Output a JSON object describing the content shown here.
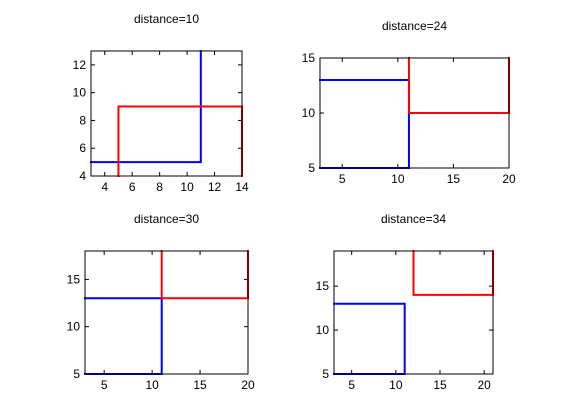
{
  "chart_data": [
    {
      "type": "line",
      "title": "distance=10",
      "xlim": [
        3,
        14
      ],
      "ylim": [
        4,
        13
      ],
      "xticks": [
        4,
        6,
        8,
        10,
        12,
        14
      ],
      "yticks": [
        4,
        6,
        8,
        10,
        12
      ],
      "grid": false,
      "series": [
        {
          "color": "#0000ff",
          "x": [
            3,
            11,
            11,
            11
          ],
          "y": [
            5,
            5,
            5,
            13
          ]
        },
        {
          "color": "#ff0000",
          "x": [
            5,
            5,
            5,
            14,
            14,
            14,
            14
          ],
          "y": [
            4,
            9,
            9,
            9,
            9,
            4,
            4
          ]
        }
      ]
    },
    {
      "type": "line",
      "title": "distance=24",
      "xlim": [
        3,
        20
      ],
      "ylim": [
        5,
        15
      ],
      "xticks": [
        5,
        10,
        15,
        20
      ],
      "yticks": [
        5,
        10,
        15
      ],
      "grid": false,
      "series": [
        {
          "color": "#0000ff",
          "x": [
            3,
            11,
            11,
            11,
            11,
            3
          ],
          "y": [
            5,
            5,
            5,
            13,
            13,
            13
          ]
        },
        {
          "color": "#ff0000",
          "x": [
            11,
            11,
            11,
            20,
            20,
            20
          ],
          "y": [
            15,
            10,
            10,
            10,
            10,
            15
          ]
        }
      ]
    },
    {
      "type": "line",
      "title": "distance=30",
      "xlim": [
        3,
        20
      ],
      "ylim": [
        5,
        18
      ],
      "xticks": [
        5,
        10,
        15,
        20
      ],
      "yticks": [
        5,
        10,
        15
      ],
      "grid": false,
      "series": [
        {
          "color": "#0000ff",
          "x": [
            3,
            11,
            11,
            11,
            11,
            3
          ],
          "y": [
            5,
            5,
            5,
            13,
            13,
            13
          ]
        },
        {
          "color": "#ff0000",
          "x": [
            11,
            11,
            11,
            20,
            20,
            20
          ],
          "y": [
            18,
            13,
            13,
            13,
            13,
            18
          ]
        }
      ]
    },
    {
      "type": "line",
      "title": "distance=34",
      "xlim": [
        3,
        21
      ],
      "ylim": [
        5,
        19
      ],
      "xticks": [
        5,
        10,
        15,
        20
      ],
      "yticks": [
        5,
        10,
        15
      ],
      "grid": false,
      "series": [
        {
          "color": "#0000ff",
          "x": [
            3,
            11,
            11,
            11,
            11,
            3
          ],
          "y": [
            5,
            5,
            5,
            13,
            13,
            13
          ]
        },
        {
          "color": "#ff0000",
          "x": [
            12,
            12,
            12,
            21,
            21,
            21
          ],
          "y": [
            19,
            14,
            14,
            14,
            14,
            19
          ]
        }
      ]
    }
  ]
}
